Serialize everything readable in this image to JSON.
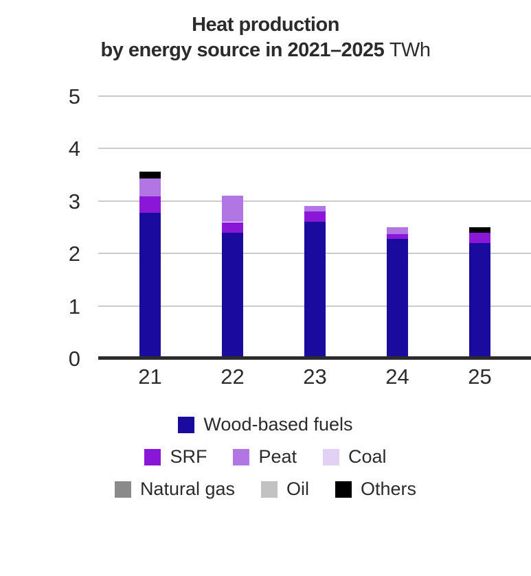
{
  "title": {
    "line1": "Heat production",
    "line2_bold": "by energy source in 2021–2025",
    "unit": "TWh"
  },
  "chart_data": {
    "type": "bar",
    "stacked": true,
    "title": "Heat production by energy source in 2021–2025",
    "unit_label": "TWh",
    "xlabel": "",
    "ylabel": "",
    "categories": [
      "21",
      "22",
      "23",
      "24",
      "25"
    ],
    "series": [
      {
        "name": "Wood-based fuels",
        "color": "#1a0a9e",
        "values": [
          2.77,
          2.4,
          2.6,
          2.28,
          2.2
        ]
      },
      {
        "name": "SRF",
        "color": "#8a17d8",
        "values": [
          0.32,
          0.2,
          0.2,
          0.09,
          0.19
        ]
      },
      {
        "name": "Peat",
        "color": "#b176e4",
        "values": [
          0.34,
          0.5,
          0.1,
          0.13,
          0.0
        ]
      },
      {
        "name": "Coal",
        "color": "#e3d1f5",
        "values": [
          0.0,
          0.0,
          0.0,
          0.0,
          0.0
        ]
      },
      {
        "name": "Natural gas",
        "color": "#8a8a8a",
        "values": [
          0.0,
          0.0,
          0.0,
          0.0,
          0.0
        ]
      },
      {
        "name": "Oil",
        "color": "#c2c2c2",
        "values": [
          0.0,
          0.0,
          0.0,
          0.0,
          0.0
        ]
      },
      {
        "name": "Others",
        "color": "#000000",
        "values": [
          0.13,
          0.0,
          0.0,
          0.0,
          0.11
        ]
      }
    ],
    "totals": [
      3.56,
      3.1,
      2.9,
      2.5,
      2.5
    ],
    "ylim": [
      0,
      5
    ],
    "yticks": [
      0,
      1,
      2,
      3,
      4,
      5
    ],
    "grid": "horizontal",
    "legend_position": "bottom",
    "legend_rows": [
      [
        "Wood-based fuels"
      ],
      [
        "SRF",
        "Peat",
        "Coal"
      ],
      [
        "Natural gas",
        "Oil",
        "Others"
      ]
    ]
  },
  "style": {
    "grid_color": "#cbcbcb",
    "axis_color": "#2b2b2b",
    "text_color": "#2b2b2b",
    "background": "#ffffff"
  }
}
